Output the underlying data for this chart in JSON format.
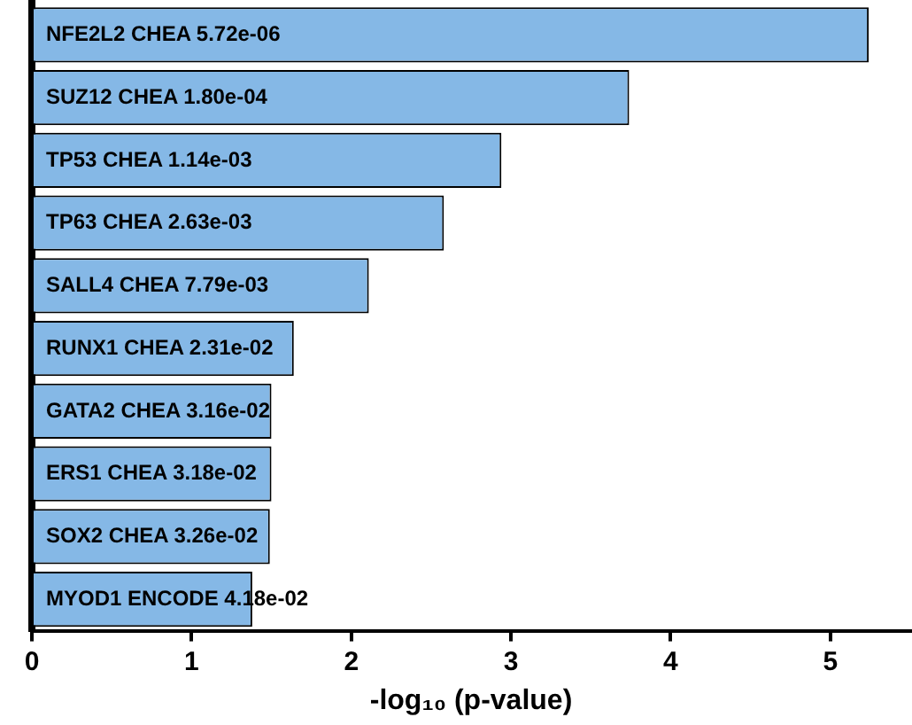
{
  "chart_data": {
    "type": "bar",
    "orientation": "horizontal",
    "xlabel": "-log₁₀ (p-value)",
    "categories": [
      "NFE2L2 CHEA 5.72e-06",
      "SUZ12 CHEA 1.80e-04",
      "TP53 CHEA 1.14e-03",
      "TP63 CHEA 2.63e-03",
      "SALL4 CHEA 7.79e-03",
      "RUNX1 CHEA 2.31e-02",
      "GATA2 CHEA 3.16e-02",
      "ERS1 CHEA 3.18e-02",
      "SOX2 CHEA 3.26e-02",
      "MYOD1 ENCODE 4.18e-02"
    ],
    "values": [
      5.24,
      3.74,
      2.94,
      2.58,
      2.11,
      1.64,
      1.5,
      1.5,
      1.49,
      1.38
    ],
    "color": "#85b8e6",
    "xlim": [
      0,
      5.5
    ],
    "xticks": [
      0,
      1,
      2,
      3,
      4,
      5
    ],
    "tick_labels": "x",
    "legend": false
  }
}
